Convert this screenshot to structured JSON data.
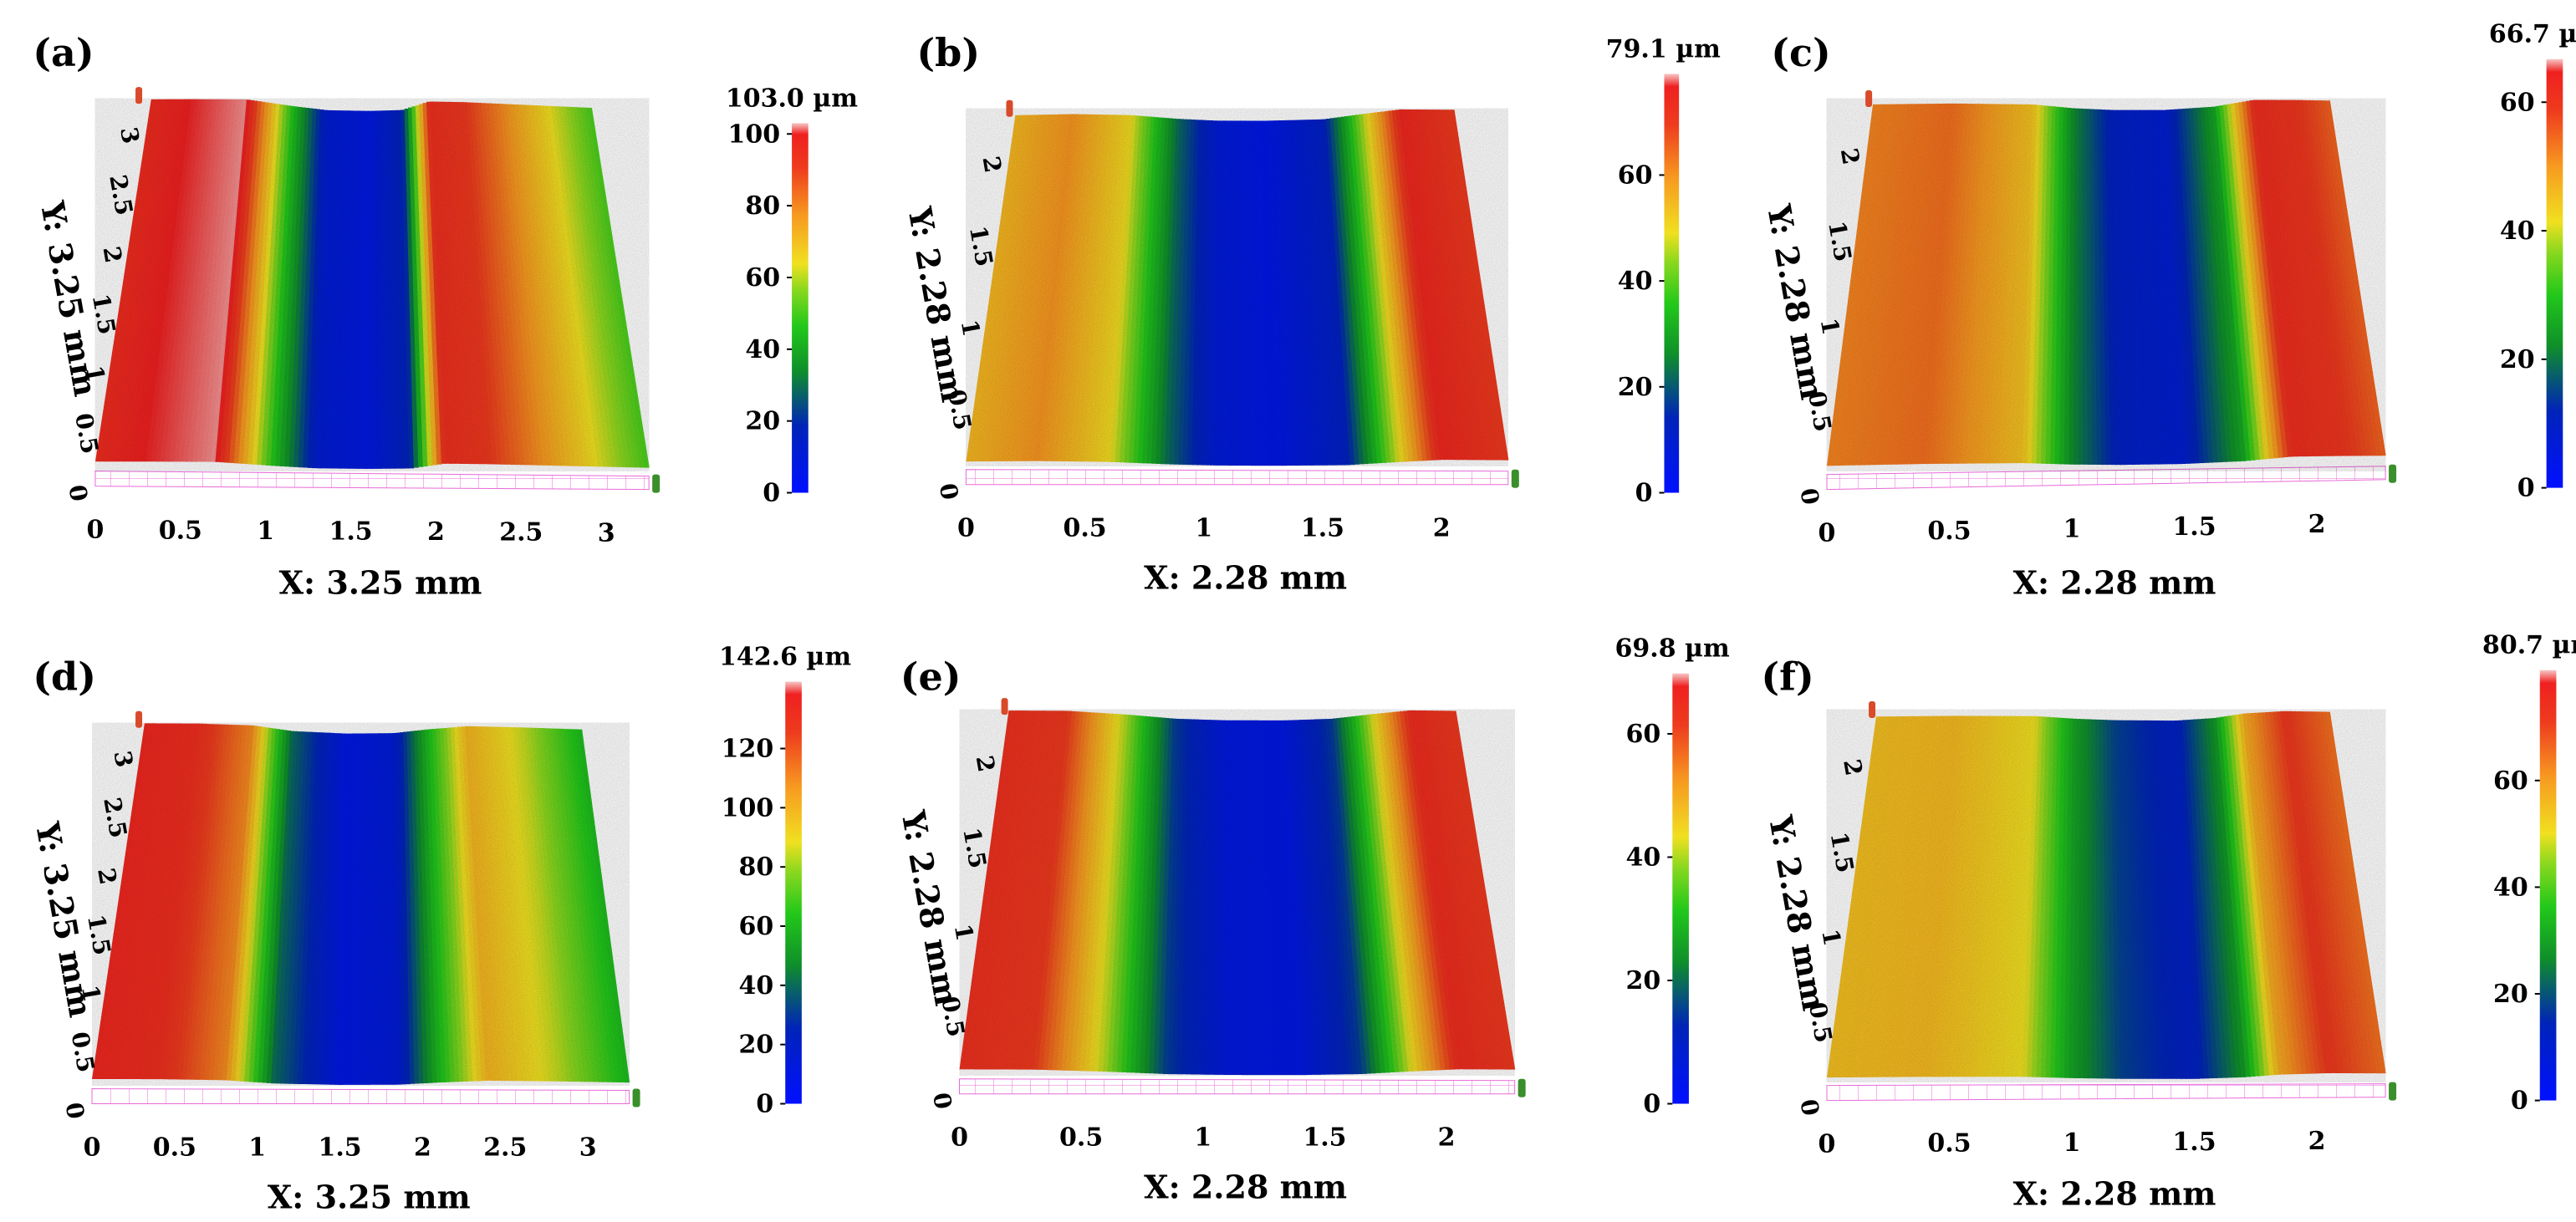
{
  "chart_data": [
    {
      "panel": "(a)",
      "type": "surface-3d",
      "x_label": "X: 3.25 mm",
      "y_label": "Y: 3.25 mm",
      "x_range_mm": [
        0,
        3.25
      ],
      "y_range_mm": [
        0,
        3.25
      ],
      "x_ticks": [
        "0",
        "0.5",
        "1",
        "1.5",
        "2",
        "2.5",
        "3"
      ],
      "y_ticks": [
        "0",
        "0.5",
        "1",
        "1.5",
        "2",
        "2.5",
        "3"
      ],
      "colorbar": {
        "max_label": "103.0 µm",
        "max": 103.0,
        "ticks": [
          "0",
          "20",
          "40",
          "60",
          "80",
          "100"
        ]
      },
      "profile": {
        "x": [
          0,
          0.3,
          0.7,
          1.05,
          1.3,
          1.6,
          1.85,
          2.05,
          2.3,
          2.8,
          3.25
        ],
        "height_um": [
          96,
          100,
          102,
          45,
          12,
          8,
          18,
          95,
          92,
          70,
          50
        ]
      }
    },
    {
      "panel": "(b)",
      "type": "surface-3d",
      "x_label": "X: 2.28 mm",
      "y_label": "Y: 2.28 mm",
      "x_range_mm": [
        0,
        2.28
      ],
      "y_range_mm": [
        0,
        2.28
      ],
      "x_ticks": [
        "0",
        "0.5",
        "1",
        "1.5",
        "2"
      ],
      "y_ticks": [
        "0",
        "0.5",
        "1",
        "1.5",
        "2"
      ],
      "colorbar": {
        "max_label": "79.1 µm",
        "max": 79.1,
        "ticks": [
          "0",
          "20",
          "40",
          "60"
        ]
      },
      "profile": {
        "x": [
          0,
          0.3,
          0.6,
          0.85,
          1.05,
          1.3,
          1.6,
          1.8,
          2.0,
          2.28
        ],
        "height_um": [
          55,
          60,
          50,
          22,
          8,
          5,
          12,
          45,
          75,
          70
        ]
      }
    },
    {
      "panel": "(c)",
      "type": "surface-3d",
      "x_label": "X: 2.28 mm",
      "y_label": "Y: 2.28 mm",
      "x_range_mm": [
        0,
        2.28
      ],
      "y_range_mm": [
        0,
        2.28
      ],
      "x_ticks": [
        "0",
        "0.5",
        "1",
        "1.5",
        "2"
      ],
      "y_ticks": [
        "0",
        "0.5",
        "1",
        "1.5",
        "2"
      ],
      "colorbar": {
        "max_label": "66.7 µm",
        "max": 66.7,
        "ticks": [
          "0",
          "20",
          "40",
          "60"
        ]
      },
      "profile": {
        "x": [
          0,
          0.4,
          0.8,
          1.0,
          1.2,
          1.45,
          1.7,
          1.9,
          2.1,
          2.28
        ],
        "height_um": [
          52,
          54,
          45,
          22,
          10,
          8,
          25,
          62,
          60,
          55
        ]
      }
    },
    {
      "panel": "(d)",
      "type": "surface-3d",
      "x_label": "X: 3.25 mm",
      "y_label": "Y: 3.25 mm",
      "x_range_mm": [
        0,
        3.25
      ],
      "y_range_mm": [
        0,
        3.25
      ],
      "x_ticks": [
        "0",
        "0.5",
        "1",
        "1.5",
        "2",
        "2.5",
        "3"
      ],
      "y_ticks": [
        "0",
        "0.5",
        "1",
        "1.5",
        "2",
        "2.5",
        "3"
      ],
      "colorbar": {
        "max_label": "142.6 µm",
        "max": 142.6,
        "ticks": [
          "0",
          "20",
          "40",
          "60",
          "80",
          "100",
          "120"
        ]
      },
      "profile": {
        "x": [
          0,
          0.4,
          0.8,
          1.1,
          1.5,
          1.85,
          2.1,
          2.4,
          2.8,
          3.25
        ],
        "height_um": [
          135,
          132,
          110,
          40,
          10,
          15,
          60,
          100,
          85,
          60
        ]
      }
    },
    {
      "panel": "(e)",
      "type": "surface-3d",
      "x_label": "X: 2.28 mm",
      "y_label": "Y: 2.28 mm",
      "x_range_mm": [
        0,
        2.28
      ],
      "y_range_mm": [
        0,
        2.28
      ],
      "x_ticks": [
        "0",
        "0.5",
        "1",
        "1.5",
        "2"
      ],
      "y_ticks": [
        "0",
        "0.5",
        "1",
        "1.5",
        "2"
      ],
      "colorbar": {
        "max_label": "69.8 µm",
        "max": 69.8,
        "ticks": [
          "0",
          "20",
          "40",
          "60"
        ]
      },
      "profile": {
        "x": [
          0,
          0.3,
          0.6,
          0.85,
          1.1,
          1.4,
          1.65,
          1.85,
          2.05,
          2.28
        ],
        "height_um": [
          64,
          62,
          40,
          15,
          6,
          5,
          15,
          42,
          65,
          62
        ]
      }
    },
    {
      "panel": "(f)",
      "type": "surface-3d",
      "x_label": "X: 2.28 mm",
      "y_label": "Y: 2.28 mm",
      "x_range_mm": [
        0,
        2.28
      ],
      "y_range_mm": [
        0,
        2.28
      ],
      "x_ticks": [
        "0",
        "0.5",
        "1",
        "1.5",
        "2"
      ],
      "y_ticks": [
        "0",
        "0.5",
        "1",
        "1.5",
        "2"
      ],
      "colorbar": {
        "max_label": "80.7 µm",
        "max": 80.7,
        "ticks": [
          "0",
          "20",
          "40",
          "60"
        ]
      },
      "profile": {
        "x": [
          0,
          0.4,
          0.8,
          1.0,
          1.2,
          1.5,
          1.7,
          1.85,
          2.05,
          2.28
        ],
        "height_um": [
          55,
          56,
          50,
          30,
          18,
          12,
          28,
          58,
          72,
          65
        ]
      }
    }
  ]
}
